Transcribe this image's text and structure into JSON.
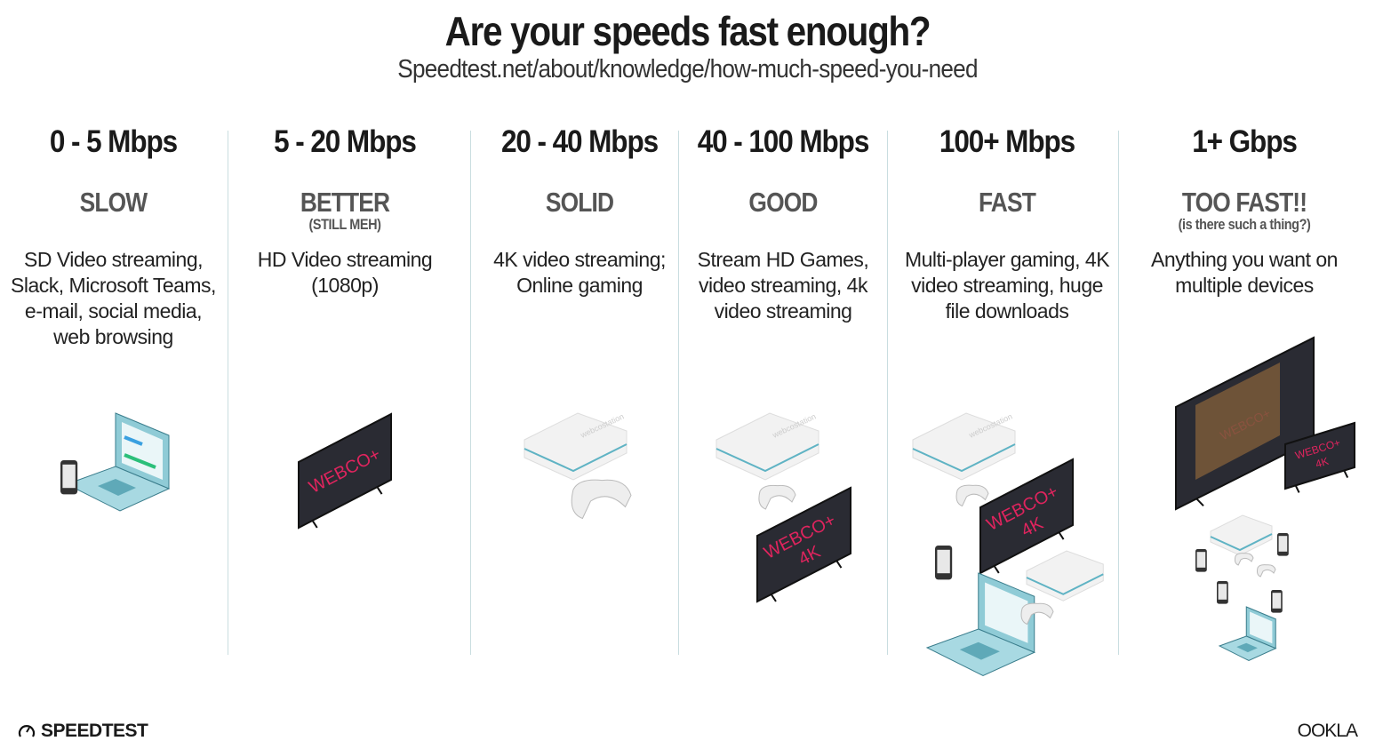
{
  "header": {
    "title": "Are your speeds fast enough?",
    "source": "Speedtest.net/about/knowledge/how-much-speed-you-need"
  },
  "tiers": [
    {
      "range": "0 - 5 Mbps",
      "label": "SLOW",
      "sublabel": "",
      "description": "SD Video streaming, Slack, Microsoft Teams, e-mail, social media, web browsing",
      "devices": [
        "laptop",
        "phone"
      ]
    },
    {
      "range": "5 - 20 Mbps",
      "label": "BETTER",
      "sublabel": "(STILL MEH)",
      "description": "HD Video streaming (1080p)",
      "devices": [
        "tv"
      ]
    },
    {
      "range": "20 - 40 Mbps",
      "label": "SOLID",
      "sublabel": "",
      "description": "4K video streaming; Online gaming",
      "devices": [
        "console",
        "controller"
      ]
    },
    {
      "range": "40 - 100 Mbps",
      "label": "GOOD",
      "sublabel": "",
      "description": "Stream HD Games, video streaming, 4k video streaming",
      "devices": [
        "console",
        "controller",
        "tv-4k"
      ]
    },
    {
      "range": "100+ Mbps",
      "label": "FAST",
      "sublabel": "",
      "description": "Multi-player gaming, 4K video streaming, huge file downloads",
      "devices": [
        "console",
        "controller",
        "tv-4k",
        "phone",
        "laptop",
        "console"
      ]
    },
    {
      "range": "1+ Gbps",
      "label": "TOO FAST!!",
      "sublabel": "(is there such a thing?)",
      "description": "Anything you want on multiple devices",
      "devices": [
        "tv",
        "tv-4k",
        "console",
        "phones",
        "laptop"
      ]
    }
  ],
  "illustration_text": {
    "tv_brand": "WEBCO+",
    "tv_4k": "4K",
    "console_brand": "webcostation"
  },
  "footer": {
    "left_logo": "SPEEDTEST",
    "right_logo": "OOKLA"
  },
  "colors": {
    "divider": "#c9dde0",
    "tv_text": "#e0245e",
    "teal": "#5fb3c4",
    "label": "#555555"
  }
}
